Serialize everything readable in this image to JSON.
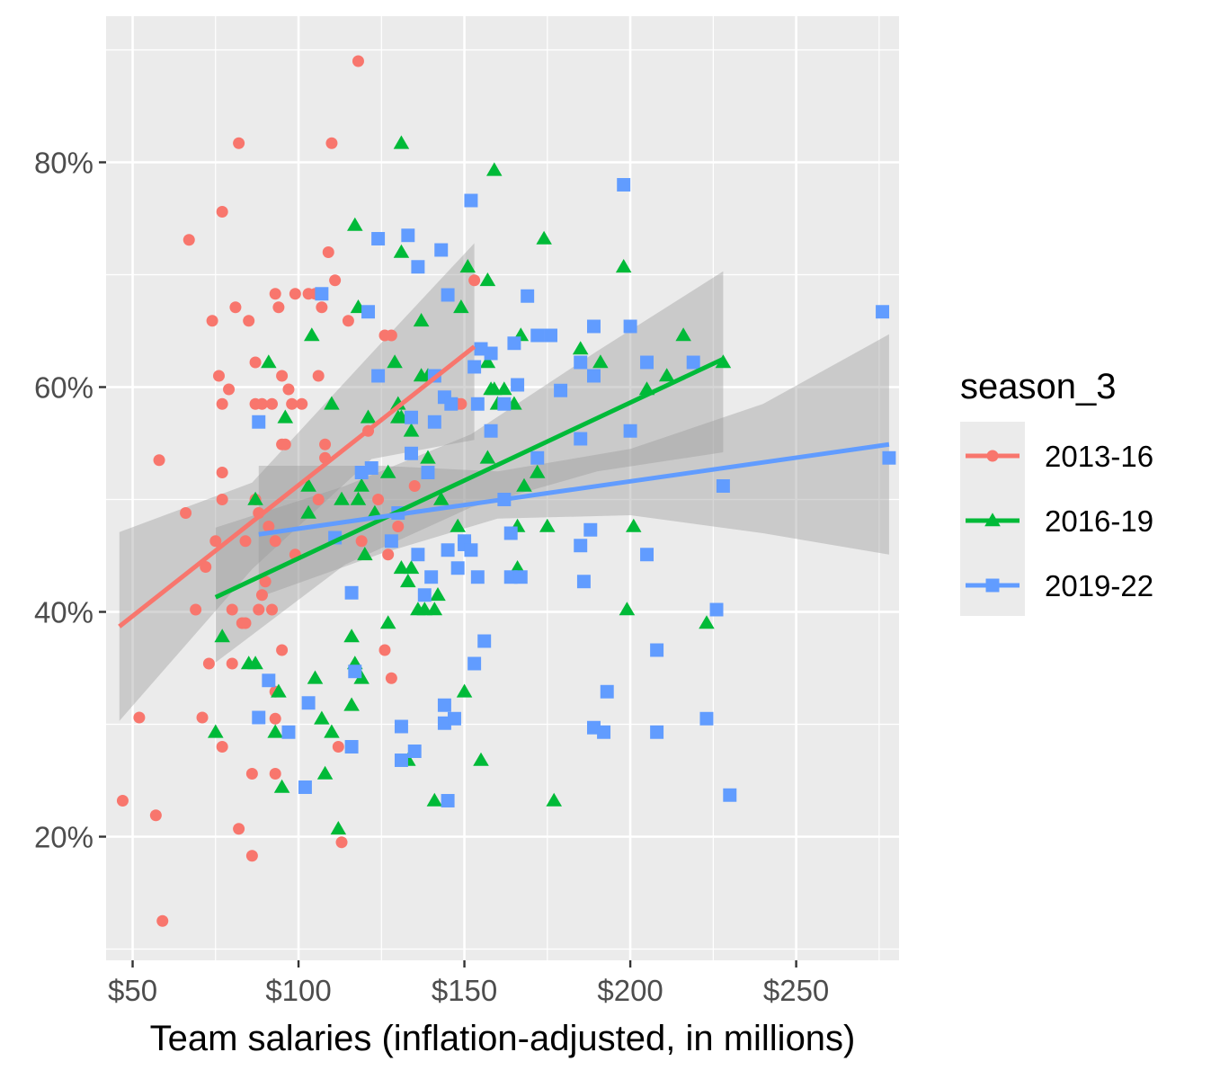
{
  "chart_data": {
    "type": "scatter",
    "xlabel": "Team salaries (inflation-adjusted, in millions)",
    "ylabel": "",
    "xlim": [
      42,
      281
    ],
    "ylim": [
      0.09,
      0.93
    ],
    "x_ticks": [
      50,
      100,
      150,
      200,
      250
    ],
    "x_tick_labels": [
      "$50",
      "$100",
      "$150",
      "$200",
      "$250"
    ],
    "y_ticks": [
      0.2,
      0.4,
      0.6,
      0.8
    ],
    "y_tick_labels": [
      "20%",
      "40%",
      "60%",
      "80%"
    ],
    "grid": true,
    "legend": {
      "title": "season_3",
      "position": "right"
    },
    "series": [
      {
        "name": "2013-16",
        "color": "#F8766D",
        "marker": "circle",
        "points": [
          [
            47,
            0.232
          ],
          [
            52,
            0.306
          ],
          [
            57,
            0.219
          ],
          [
            58,
            0.535
          ],
          [
            59,
            0.125
          ],
          [
            66,
            0.488
          ],
          [
            67,
            0.731
          ],
          [
            69,
            0.402
          ],
          [
            71,
            0.306
          ],
          [
            72,
            0.44
          ],
          [
            73,
            0.354
          ],
          [
            74,
            0.659
          ],
          [
            75,
            0.463
          ],
          [
            76,
            0.61
          ],
          [
            77,
            0.756
          ],
          [
            77,
            0.585
          ],
          [
            77,
            0.524
          ],
          [
            77,
            0.5
          ],
          [
            77,
            0.28
          ],
          [
            79,
            0.598
          ],
          [
            80,
            0.354
          ],
          [
            80,
            0.402
          ],
          [
            81,
            0.671
          ],
          [
            82,
            0.207
          ],
          [
            82,
            0.817
          ],
          [
            83,
            0.39
          ],
          [
            84,
            0.463
          ],
          [
            84,
            0.39
          ],
          [
            85,
            0.659
          ],
          [
            86,
            0.256
          ],
          [
            86,
            0.183
          ],
          [
            87,
            0.622
          ],
          [
            87,
            0.585
          ],
          [
            87,
            0.5
          ],
          [
            88,
            0.488
          ],
          [
            88,
            0.402
          ],
          [
            89,
            0.585
          ],
          [
            89,
            0.415
          ],
          [
            90,
            0.427
          ],
          [
            91,
            0.476
          ],
          [
            92,
            0.585
          ],
          [
            92,
            0.402
          ],
          [
            93,
            0.683
          ],
          [
            93,
            0.463
          ],
          [
            93,
            0.329
          ],
          [
            93,
            0.305
          ],
          [
            93,
            0.256
          ],
          [
            94,
            0.671
          ],
          [
            95,
            0.61
          ],
          [
            95,
            0.549
          ],
          [
            95,
            0.366
          ],
          [
            96,
            0.549
          ],
          [
            97,
            0.598
          ],
          [
            98,
            0.585
          ],
          [
            99,
            0.683
          ],
          [
            99,
            0.451
          ],
          [
            101,
            0.585
          ],
          [
            103,
            0.683
          ],
          [
            105,
            0.683
          ],
          [
            106,
            0.61
          ],
          [
            106,
            0.5
          ],
          [
            107,
            0.671
          ],
          [
            108,
            0.549
          ],
          [
            108,
            0.537
          ],
          [
            109,
            0.72
          ],
          [
            110,
            0.817
          ],
          [
            111,
            0.695
          ],
          [
            112,
            0.28
          ],
          [
            113,
            0.195
          ],
          [
            115,
            0.659
          ],
          [
            118,
            0.89
          ],
          [
            119,
            0.463
          ],
          [
            121,
            0.561
          ],
          [
            124,
            0.5
          ],
          [
            126,
            0.366
          ],
          [
            126,
            0.646
          ],
          [
            127,
            0.451
          ],
          [
            128,
            0.341
          ],
          [
            128,
            0.646
          ],
          [
            130,
            0.476
          ],
          [
            135,
            0.512
          ],
          [
            148,
            0.585
          ],
          [
            149,
            0.585
          ],
          [
            153,
            0.695
          ]
        ],
        "trend": [
          [
            46,
            0.387
          ],
          [
            153,
            0.636
          ]
        ],
        "band": {
          "x": [
            46,
            86,
            122,
            153
          ],
          "lower": [
            0.303,
            0.438,
            0.536,
            0.553
          ],
          "upper": [
            0.471,
            0.515,
            0.63,
            0.728
          ]
        }
      },
      {
        "name": "2016-19",
        "color": "#00BA38",
        "marker": "triangle",
        "points": [
          [
            75,
            0.293
          ],
          [
            77,
            0.378
          ],
          [
            85,
            0.354
          ],
          [
            87,
            0.5
          ],
          [
            87,
            0.354
          ],
          [
            91,
            0.622
          ],
          [
            93,
            0.293
          ],
          [
            94,
            0.329
          ],
          [
            95,
            0.244
          ],
          [
            96,
            0.573
          ],
          [
            103,
            0.512
          ],
          [
            103,
            0.488
          ],
          [
            104,
            0.646
          ],
          [
            105,
            0.341
          ],
          [
            107,
            0.305
          ],
          [
            108,
            0.256
          ],
          [
            110,
            0.293
          ],
          [
            110,
            0.585
          ],
          [
            112,
            0.207
          ],
          [
            113,
            0.5
          ],
          [
            116,
            0.378
          ],
          [
            116,
            0.317
          ],
          [
            117,
            0.744
          ],
          [
            117,
            0.354
          ],
          [
            118,
            0.671
          ],
          [
            118,
            0.5
          ],
          [
            119,
            0.341
          ],
          [
            119,
            0.512
          ],
          [
            120,
            0.451
          ],
          [
            121,
            0.573
          ],
          [
            123,
            0.488
          ],
          [
            127,
            0.39
          ],
          [
            127,
            0.524
          ],
          [
            129,
            0.622
          ],
          [
            130,
            0.585
          ],
          [
            130,
            0.573
          ],
          [
            131,
            0.817
          ],
          [
            131,
            0.72
          ],
          [
            131,
            0.439
          ],
          [
            131,
            0.573
          ],
          [
            133,
            0.427
          ],
          [
            133,
            0.268
          ],
          [
            134,
            0.561
          ],
          [
            134,
            0.439
          ],
          [
            136,
            0.402
          ],
          [
            137,
            0.659
          ],
          [
            137,
            0.61
          ],
          [
            138,
            0.402
          ],
          [
            139,
            0.537
          ],
          [
            139,
            0.61
          ],
          [
            141,
            0.232
          ],
          [
            141,
            0.402
          ],
          [
            142,
            0.415
          ],
          [
            143,
            0.5
          ],
          [
            148,
            0.476
          ],
          [
            149,
            0.671
          ],
          [
            150,
            0.329
          ],
          [
            151,
            0.707
          ],
          [
            155,
            0.268
          ],
          [
            157,
            0.695
          ],
          [
            157,
            0.537
          ],
          [
            157,
            0.622
          ],
          [
            158,
            0.598
          ],
          [
            159,
            0.793
          ],
          [
            159,
            0.598
          ],
          [
            160,
            0.585
          ],
          [
            162,
            0.598
          ],
          [
            165,
            0.585
          ],
          [
            166,
            0.476
          ],
          [
            166,
            0.439
          ],
          [
            167,
            0.646
          ],
          [
            168,
            0.512
          ],
          [
            172,
            0.524
          ],
          [
            174,
            0.732
          ],
          [
            175,
            0.476
          ],
          [
            177,
            0.232
          ],
          [
            185,
            0.634
          ],
          [
            191,
            0.622
          ],
          [
            198,
            0.707
          ],
          [
            199,
            0.402
          ],
          [
            201,
            0.476
          ],
          [
            205,
            0.598
          ],
          [
            211,
            0.61
          ],
          [
            216,
            0.646
          ],
          [
            223,
            0.39
          ],
          [
            228,
            0.622
          ]
        ],
        "trend": [
          [
            75,
            0.413
          ],
          [
            228,
            0.625
          ]
        ],
        "band": {
          "x": [
            75,
            114,
            152,
            190,
            228
          ],
          "lower": [
            0.355,
            0.442,
            0.493,
            0.525,
            0.542
          ],
          "upper": [
            0.475,
            0.512,
            0.558,
            0.632,
            0.703
          ]
        }
      },
      {
        "name": "2019-22",
        "color": "#619CFF",
        "marker": "square",
        "points": [
          [
            88,
            0.569
          ],
          [
            88,
            0.306
          ],
          [
            91,
            0.339
          ],
          [
            97,
            0.293
          ],
          [
            102,
            0.244
          ],
          [
            103,
            0.319
          ],
          [
            107,
            0.683
          ],
          [
            111,
            0.466
          ],
          [
            116,
            0.28
          ],
          [
            116,
            0.417
          ],
          [
            117,
            0.347
          ],
          [
            119,
            0.524
          ],
          [
            121,
            0.667
          ],
          [
            122,
            0.528
          ],
          [
            124,
            0.732
          ],
          [
            124,
            0.61
          ],
          [
            128,
            0.463
          ],
          [
            130,
            0.488
          ],
          [
            131,
            0.298
          ],
          [
            131,
            0.268
          ],
          [
            133,
            0.735
          ],
          [
            134,
            0.573
          ],
          [
            134,
            0.541
          ],
          [
            135,
            0.276
          ],
          [
            136,
            0.707
          ],
          [
            136,
            0.451
          ],
          [
            138,
            0.415
          ],
          [
            139,
            0.524
          ],
          [
            140,
            0.431
          ],
          [
            141,
            0.569
          ],
          [
            141,
            0.61
          ],
          [
            143,
            0.722
          ],
          [
            144,
            0.301
          ],
          [
            144,
            0.317
          ],
          [
            144,
            0.591
          ],
          [
            145,
            0.682
          ],
          [
            145,
            0.232
          ],
          [
            145,
            0.455
          ],
          [
            146,
            0.585
          ],
          [
            147,
            0.305
          ],
          [
            148,
            0.439
          ],
          [
            150,
            0.463
          ],
          [
            150,
            0.46
          ],
          [
            152,
            0.766
          ],
          [
            152,
            0.455
          ],
          [
            153,
            0.618
          ],
          [
            153,
            0.354
          ],
          [
            154,
            0.585
          ],
          [
            154,
            0.431
          ],
          [
            155,
            0.634
          ],
          [
            156,
            0.374
          ],
          [
            158,
            0.561
          ],
          [
            158,
            0.63
          ],
          [
            162,
            0.5
          ],
          [
            162,
            0.585
          ],
          [
            164,
            0.47
          ],
          [
            164,
            0.431
          ],
          [
            165,
            0.639
          ],
          [
            166,
            0.602
          ],
          [
            167,
            0.431
          ],
          [
            169,
            0.681
          ],
          [
            172,
            0.646
          ],
          [
            172,
            0.537
          ],
          [
            176,
            0.646
          ],
          [
            179,
            0.597
          ],
          [
            185,
            0.554
          ],
          [
            185,
            0.622
          ],
          [
            185,
            0.459
          ],
          [
            186,
            0.427
          ],
          [
            188,
            0.473
          ],
          [
            189,
            0.654
          ],
          [
            189,
            0.297
          ],
          [
            189,
            0.61
          ],
          [
            192,
            0.293
          ],
          [
            193,
            0.329
          ],
          [
            198,
            0.78
          ],
          [
            200,
            0.654
          ],
          [
            200,
            0.561
          ],
          [
            205,
            0.622
          ],
          [
            205,
            0.451
          ],
          [
            208,
            0.366
          ],
          [
            208,
            0.293
          ],
          [
            219,
            0.622
          ],
          [
            223,
            0.305
          ],
          [
            226,
            0.402
          ],
          [
            228,
            0.512
          ],
          [
            230,
            0.237
          ],
          [
            276,
            0.667
          ],
          [
            278,
            0.537
          ]
        ],
        "trend": [
          [
            88,
            0.469
          ],
          [
            278,
            0.549
          ]
        ],
        "band": {
          "x": [
            88,
            125,
            160,
            200,
            240,
            278
          ],
          "lower": [
            0.413,
            0.452,
            0.483,
            0.486,
            0.47,
            0.451
          ],
          "upper": [
            0.53,
            0.53,
            0.525,
            0.545,
            0.585,
            0.647
          ]
        }
      }
    ]
  }
}
